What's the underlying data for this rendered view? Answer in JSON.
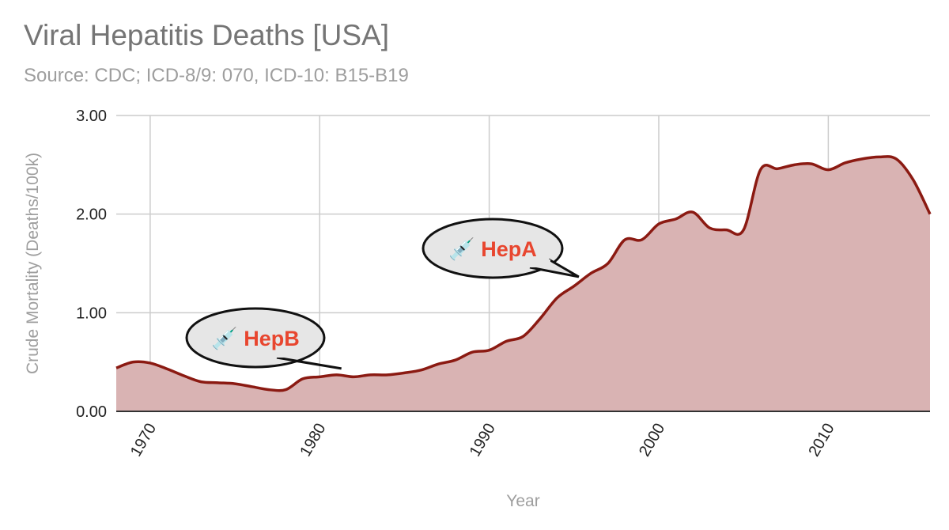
{
  "chart_data": {
    "type": "area",
    "title": "Viral Hepatitis Deaths [USA]",
    "subtitle": "Source: CDC; ICD-8/9: 070, ICD-10: B15-B19",
    "xlabel": "Year",
    "ylabel": "Crude Mortality (Deaths/100k)",
    "xlim": [
      1968,
      2016
    ],
    "ylim": [
      0,
      3
    ],
    "x_ticks": [
      "1970",
      "1980",
      "1990",
      "2000",
      "2010"
    ],
    "y_ticks": [
      "0.00",
      "1.00",
      "2.00",
      "3.00"
    ],
    "grid": true,
    "colors": {
      "line": "#8b1a12",
      "fill": "#d9b3b3",
      "grid": "#cccccc",
      "axis": "#333333"
    },
    "x": [
      1968,
      1969,
      1970,
      1971,
      1972,
      1973,
      1974,
      1975,
      1976,
      1977,
      1978,
      1979,
      1980,
      1981,
      1982,
      1983,
      1984,
      1985,
      1986,
      1987,
      1988,
      1989,
      1990,
      1991,
      1992,
      1993,
      1994,
      1995,
      1996,
      1997,
      1998,
      1999,
      2000,
      2001,
      2002,
      2003,
      2004,
      2005,
      2006,
      2007,
      2008,
      2009,
      2010,
      2011,
      2012,
      2013,
      2014,
      2015,
      2016
    ],
    "values": [
      0.44,
      0.5,
      0.49,
      0.43,
      0.36,
      0.3,
      0.29,
      0.28,
      0.25,
      0.22,
      0.22,
      0.33,
      0.35,
      0.37,
      0.35,
      0.37,
      0.37,
      0.39,
      0.42,
      0.48,
      0.52,
      0.6,
      0.62,
      0.71,
      0.76,
      0.94,
      1.15,
      1.27,
      1.4,
      1.5,
      1.74,
      1.74,
      1.9,
      1.95,
      2.02,
      1.86,
      1.84,
      1.84,
      2.45,
      2.46,
      2.5,
      2.51,
      2.45,
      2.52,
      2.56,
      2.58,
      2.56,
      2.35,
      2.0
    ],
    "annotations": [
      {
        "label": "💉 HepB",
        "x": 1981,
        "y": 0.37
      },
      {
        "label": "💉 HepA",
        "x": 1995,
        "y": 1.3
      }
    ]
  }
}
